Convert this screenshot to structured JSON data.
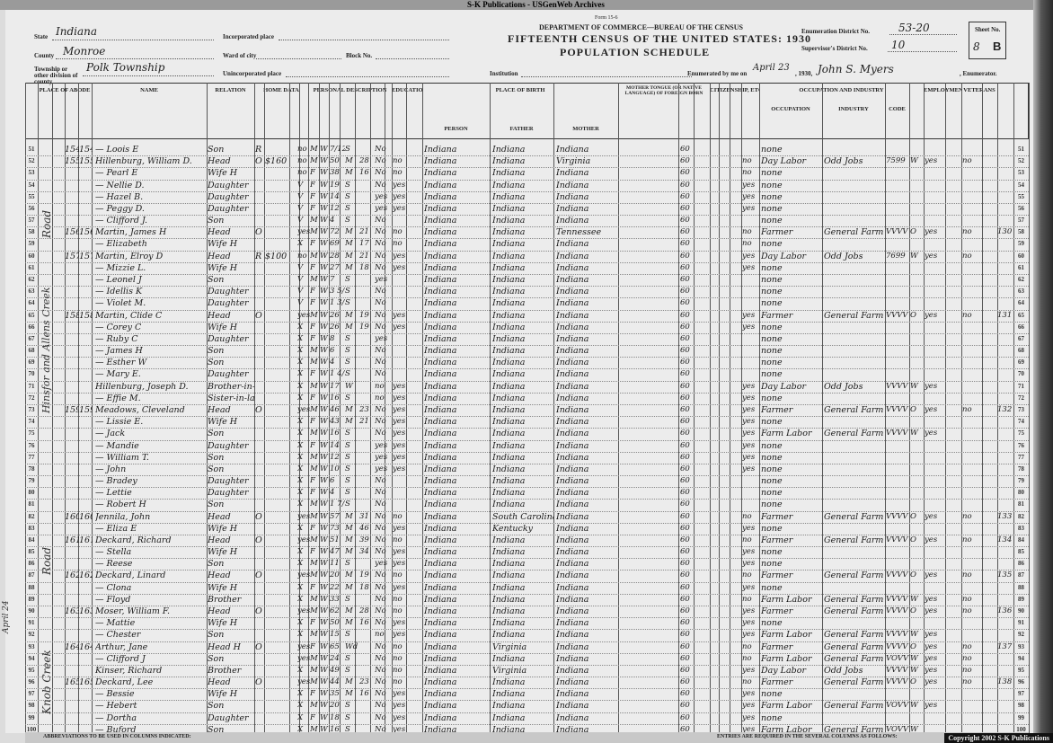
{
  "archive_banner": "S-K Publications - USGenWeb Archives",
  "form_no": "Form 15-6",
  "department": "DEPARTMENT OF COMMERCE—BUREAU OF THE CENSUS",
  "census_title": "FIFTEENTH CENSUS OF THE UNITED STATES: 1930",
  "schedule_title": "POPULATION SCHEDULE",
  "header": {
    "state_label": "State",
    "state": "Indiana",
    "county_label": "County",
    "county": "Monroe",
    "township_label": "Township or other division of county",
    "township": "Polk Township",
    "incorporated_label": "Incorporated place",
    "ward_label": "Ward of city",
    "block_label": "Block No.",
    "unincorporated_label": "Unincorporated place",
    "institution_label": "Institution",
    "ed_label": "Enumeration District No.",
    "ed": "53-20",
    "sd_label": "Supervisor's District No.",
    "sd": "10",
    "sheet_label": "Sheet No.",
    "sheet": "8",
    "sheet_side": "B",
    "enumerated_label": "Enumerated by me on",
    "enumerated_date": "April 23",
    "year": ", 1930,",
    "enumerator": "John S. Myers",
    "enumerator_label": ", Enumerator."
  },
  "column_groups": {
    "abode": "PLACE OF ABODE",
    "name": "NAME",
    "relation": "RELATION",
    "home": "HOME DATA",
    "personal": "PERSONAL DESCRIPTION",
    "education": "EDUCATION",
    "birth": "PLACE OF BIRTH",
    "tongue": "MOTHER TONGUE (OR NATIVE LANGUAGE) OF FOREIGN BORN",
    "citizenship": "CITIZENSHIP, ETC.",
    "occupation": "OCCUPATION AND INDUSTRY",
    "employment": "EMPLOYMENT",
    "veterans": "VETERANS",
    "person": "PERSON",
    "father": "FATHER",
    "mother": "MOTHER",
    "occ_sub": "OCCUPATION",
    "ind_sub": "INDUSTRY",
    "code_sub": "CODE"
  },
  "street_notes": [
    "Road",
    "Hinsfor and Allens Creek",
    "Road",
    "Knob Creek"
  ],
  "margin_note": "April 24",
  "rows": [
    [
      "51",
      "154",
      "154",
      "— Loois E",
      "Son",
      "R",
      "",
      "no",
      "M",
      "W",
      "7/12",
      "S",
      "",
      "No",
      "",
      "Indiana",
      "Indiana",
      "Indiana",
      "60",
      "",
      "none",
      "",
      "",
      "",
      "",
      "",
      ""
    ],
    [
      "52",
      "155",
      "155",
      "Hillenburg, William D.",
      "Head",
      "O",
      "$160",
      "no",
      "M",
      "W",
      "50",
      "M",
      "28",
      "No",
      "no",
      "Indiana",
      "Indiana",
      "Virginia",
      "60",
      "no",
      "Day Labor",
      "Odd Jobs",
      "7599",
      "W",
      "yes",
      "no",
      ""
    ],
    [
      "53",
      "",
      "",
      "— Pearl E",
      "Wife H",
      "",
      "",
      "no",
      "F",
      "W",
      "38",
      "M",
      "16",
      "No",
      "no",
      "Indiana",
      "Indiana",
      "Indiana",
      "60",
      "no",
      "none",
      "",
      "",
      "",
      "",
      "",
      ""
    ],
    [
      "54",
      "",
      "",
      "— Nellie D.",
      "Daughter",
      "",
      "",
      "V",
      "F",
      "W",
      "19",
      "S",
      "",
      "No",
      "yes",
      "Indiana",
      "Indiana",
      "Indiana",
      "60",
      "yes",
      "none",
      "",
      "",
      "",
      "",
      "",
      ""
    ],
    [
      "55",
      "",
      "",
      "— Hazel B.",
      "Daughter",
      "",
      "",
      "V",
      "F",
      "W",
      "14",
      "S",
      "",
      "yes",
      "yes",
      "Indiana",
      "Indiana",
      "Indiana",
      "60",
      "yes",
      "none",
      "",
      "",
      "",
      "",
      "",
      ""
    ],
    [
      "56",
      "",
      "",
      "— Peggy D.",
      "Daughter",
      "",
      "",
      "V",
      "F",
      "W",
      "12",
      "S",
      "",
      "yes",
      "yes",
      "Indiana",
      "Indiana",
      "Indiana",
      "60",
      "yes",
      "none",
      "",
      "",
      "",
      "",
      "",
      ""
    ],
    [
      "57",
      "",
      "",
      "— Clifford J.",
      "Son",
      "",
      "",
      "V",
      "M",
      "W",
      "4",
      "S",
      "",
      "No",
      "",
      "Indiana",
      "Indiana",
      "Indiana",
      "60",
      "",
      "none",
      "",
      "",
      "",
      "",
      "",
      ""
    ],
    [
      "58",
      "156",
      "156",
      "Martin, James H",
      "Head",
      "O",
      "",
      "yes",
      "M",
      "W",
      "72",
      "M",
      "21",
      "No",
      "no",
      "Indiana",
      "Indiana",
      "Tennessee",
      "60",
      "no",
      "Farmer",
      "General Farm",
      "VVVV",
      "O",
      "yes",
      "no",
      "130"
    ],
    [
      "59",
      "",
      "",
      "— Elizabeth",
      "Wife H",
      "",
      "",
      "X",
      "F",
      "W",
      "69",
      "M",
      "17",
      "No",
      "no",
      "Indiana",
      "Indiana",
      "Indiana",
      "60",
      "no",
      "none",
      "",
      "",
      "",
      "",
      "",
      ""
    ],
    [
      "60",
      "157",
      "157",
      "Martin, Elroy D",
      "Head",
      "R",
      "$100",
      "no",
      "M",
      "W",
      "28",
      "M",
      "21",
      "No",
      "yes",
      "Indiana",
      "Indiana",
      "Indiana",
      "60",
      "yes",
      "Day Labor",
      "Odd Jobs",
      "7699",
      "W",
      "yes",
      "no",
      ""
    ],
    [
      "61",
      "",
      "",
      "— Mizzie L.",
      "Wife H",
      "",
      "",
      "V",
      "F",
      "W",
      "27",
      "M",
      "18",
      "No",
      "yes",
      "Indiana",
      "Indiana",
      "Indiana",
      "60",
      "yes",
      "none",
      "",
      "",
      "",
      "",
      "",
      ""
    ],
    [
      "62",
      "",
      "",
      "— Leonel J",
      "Son",
      "",
      "",
      "V",
      "M",
      "W",
      "7",
      "S",
      "",
      "yes",
      "",
      "Indiana",
      "Indiana",
      "Indiana",
      "60",
      "",
      "none",
      "",
      "",
      "",
      "",
      "",
      ""
    ],
    [
      "63",
      "",
      "",
      "— Idellis K",
      "Daughter",
      "",
      "",
      "V",
      "F",
      "W",
      "3 5/12",
      "S",
      "",
      "No",
      "",
      "Indiana",
      "Indiana",
      "Indiana",
      "60",
      "",
      "none",
      "",
      "",
      "",
      "",
      "",
      ""
    ],
    [
      "64",
      "",
      "",
      "— Violet M.",
      "Daughter",
      "",
      "",
      "V",
      "F",
      "W",
      "1 3/12",
      "S",
      "",
      "No",
      "",
      "Indiana",
      "Indiana",
      "Indiana",
      "60",
      "",
      "none",
      "",
      "",
      "",
      "",
      "",
      ""
    ],
    [
      "65",
      "158",
      "158",
      "Martin, Clide C",
      "Head",
      "O",
      "",
      "yes",
      "M",
      "W",
      "26",
      "M",
      "19",
      "No",
      "yes",
      "Indiana",
      "Indiana",
      "Indiana",
      "60",
      "yes",
      "Farmer",
      "General Farm",
      "VVVV",
      "O",
      "yes",
      "no",
      "131"
    ],
    [
      "66",
      "",
      "",
      "— Corey C",
      "Wife H",
      "",
      "",
      "X",
      "F",
      "W",
      "26",
      "M",
      "19",
      "No",
      "yes",
      "Indiana",
      "Indiana",
      "Indiana",
      "60",
      "yes",
      "none",
      "",
      "",
      "",
      "",
      "",
      ""
    ],
    [
      "67",
      "",
      "",
      "— Ruby C",
      "Daughter",
      "",
      "",
      "X",
      "F",
      "W",
      "8",
      "S",
      "",
      "yes",
      "",
      "Indiana",
      "Indiana",
      "Indiana",
      "60",
      "",
      "none",
      "",
      "",
      "",
      "",
      "",
      ""
    ],
    [
      "68",
      "",
      "",
      "— James H",
      "Son",
      "",
      "",
      "X",
      "M",
      "W",
      "6",
      "S",
      "",
      "No",
      "",
      "Indiana",
      "Indiana",
      "Indiana",
      "60",
      "",
      "none",
      "",
      "",
      "",
      "",
      "",
      ""
    ],
    [
      "69",
      "",
      "",
      "— Esther W",
      "Son",
      "",
      "",
      "X",
      "M",
      "W",
      "4",
      "S",
      "",
      "No",
      "",
      "Indiana",
      "Indiana",
      "Indiana",
      "60",
      "",
      "none",
      "",
      "",
      "",
      "",
      "",
      ""
    ],
    [
      "70",
      "",
      "",
      "— Mary E.",
      "Daughter",
      "",
      "",
      "X",
      "F",
      "W",
      "1 4/12",
      "S",
      "",
      "No",
      "",
      "Indiana",
      "Indiana",
      "Indiana",
      "60",
      "",
      "none",
      "",
      "",
      "",
      "",
      "",
      ""
    ],
    [
      "71",
      "",
      "",
      "Hillenburg, Joseph D.",
      "Brother-in-law",
      "",
      "",
      "X",
      "M",
      "W",
      "17",
      "W",
      "",
      "no",
      "yes",
      "Indiana",
      "Indiana",
      "Indiana",
      "60",
      "yes",
      "Day Labor",
      "Odd Jobs",
      "VVVV",
      "W",
      "yes",
      "",
      ""
    ],
    [
      "72",
      "",
      "",
      "— Effie M.",
      "Sister-in-law",
      "",
      "",
      "X",
      "F",
      "W",
      "16",
      "S",
      "",
      "no",
      "yes",
      "Indiana",
      "Indiana",
      "Indiana",
      "60",
      "yes",
      "none",
      "",
      "",
      "",
      "",
      "",
      ""
    ],
    [
      "73",
      "159",
      "159",
      "Meadows, Cleveland",
      "Head",
      "O",
      "",
      "yes",
      "M",
      "W",
      "46",
      "M",
      "23",
      "No",
      "yes",
      "Indiana",
      "Indiana",
      "Indiana",
      "60",
      "yes",
      "Farmer",
      "General Farm",
      "VVVV",
      "O",
      "yes",
      "no",
      "132"
    ],
    [
      "74",
      "",
      "",
      "— Lissie E.",
      "Wife H",
      "",
      "",
      "X",
      "F",
      "W",
      "43",
      "M",
      "21",
      "No",
      "yes",
      "Indiana",
      "Indiana",
      "Indiana",
      "60",
      "yes",
      "none",
      "",
      "",
      "",
      "",
      "",
      ""
    ],
    [
      "75",
      "",
      "",
      "— Jack",
      "Son",
      "",
      "",
      "X",
      "M",
      "W",
      "16",
      "S",
      "",
      "No",
      "yes",
      "Indiana",
      "Indiana",
      "Indiana",
      "60",
      "yes",
      "Farm Labor",
      "General Farm",
      "VVVV",
      "W",
      "yes",
      "",
      ""
    ],
    [
      "76",
      "",
      "",
      "— Mandie",
      "Daughter",
      "",
      "",
      "X",
      "F",
      "W",
      "14",
      "S",
      "",
      "yes",
      "yes",
      "Indiana",
      "Indiana",
      "Indiana",
      "60",
      "yes",
      "none",
      "",
      "",
      "",
      "",
      "",
      ""
    ],
    [
      "77",
      "",
      "",
      "— William T.",
      "Son",
      "",
      "",
      "X",
      "M",
      "W",
      "12",
      "S",
      "",
      "yes",
      "yes",
      "Indiana",
      "Indiana",
      "Indiana",
      "60",
      "yes",
      "none",
      "",
      "",
      "",
      "",
      "",
      ""
    ],
    [
      "78",
      "",
      "",
      "— John",
      "Son",
      "",
      "",
      "X",
      "M",
      "W",
      "10",
      "S",
      "",
      "yes",
      "yes",
      "Indiana",
      "Indiana",
      "Indiana",
      "60",
      "yes",
      "none",
      "",
      "",
      "",
      "",
      "",
      ""
    ],
    [
      "79",
      "",
      "",
      "— Bradey",
      "Daughter",
      "",
      "",
      "X",
      "F",
      "W",
      "6",
      "S",
      "",
      "No",
      "",
      "Indiana",
      "Indiana",
      "Indiana",
      "60",
      "",
      "none",
      "",
      "",
      "",
      "",
      "",
      ""
    ],
    [
      "80",
      "",
      "",
      "— Lettie",
      "Daughter",
      "",
      "",
      "X",
      "F",
      "W",
      "4",
      "S",
      "",
      "No",
      "",
      "Indiana",
      "Indiana",
      "Indiana",
      "60",
      "",
      "none",
      "",
      "",
      "",
      "",
      "",
      ""
    ],
    [
      "81",
      "",
      "",
      "— Robert H",
      "Son",
      "",
      "",
      "X",
      "M",
      "W",
      "1 7/12",
      "S",
      "",
      "No",
      "",
      "Indiana",
      "Indiana",
      "Indiana",
      "60",
      "",
      "none",
      "",
      "",
      "",
      "",
      "",
      ""
    ],
    [
      "82",
      "160",
      "160",
      "Jennila, John",
      "Head",
      "O",
      "",
      "yes",
      "M",
      "W",
      "57",
      "M",
      "31",
      "No",
      "no",
      "Indiana",
      "South Carolina",
      "Indiana",
      "60",
      "no",
      "Farmer",
      "General Farm",
      "VVVV",
      "O",
      "yes",
      "no",
      "133"
    ],
    [
      "83",
      "",
      "",
      "— Eliza E",
      "Wife H",
      "",
      "",
      "X",
      "F",
      "W",
      "73",
      "M",
      "46",
      "No",
      "yes",
      "Indiana",
      "Kentucky",
      "Indiana",
      "60",
      "yes",
      "none",
      "",
      "",
      "",
      "",
      "",
      ""
    ],
    [
      "84",
      "161",
      "161",
      "Deckard, Richard",
      "Head",
      "O",
      "",
      "yes",
      "M",
      "W",
      "51",
      "M",
      "39",
      "No",
      "no",
      "Indiana",
      "Indiana",
      "Indiana",
      "60",
      "no",
      "Farmer",
      "General Farm",
      "VVVV",
      "O",
      "yes",
      "no",
      "134"
    ],
    [
      "85",
      "",
      "",
      "— Stella",
      "Wife H",
      "",
      "",
      "X",
      "F",
      "W",
      "47",
      "M",
      "34",
      "No",
      "yes",
      "Indiana",
      "Indiana",
      "Indiana",
      "60",
      "yes",
      "none",
      "",
      "",
      "",
      "",
      "",
      ""
    ],
    [
      "86",
      "",
      "",
      "— Reese",
      "Son",
      "",
      "",
      "X",
      "M",
      "W",
      "11",
      "S",
      "",
      "yes",
      "yes",
      "Indiana",
      "Indiana",
      "Indiana",
      "60",
      "yes",
      "none",
      "",
      "",
      "",
      "",
      "",
      ""
    ],
    [
      "87",
      "162",
      "162",
      "Deckard, Linard",
      "Head",
      "O",
      "",
      "yes",
      "M",
      "W",
      "20",
      "M",
      "19",
      "No",
      "no",
      "Indiana",
      "Indiana",
      "Indiana",
      "60",
      "no",
      "Farmer",
      "General Farm",
      "VVVV",
      "O",
      "yes",
      "no",
      "135"
    ],
    [
      "88",
      "",
      "",
      "— Clona",
      "Wife H",
      "",
      "",
      "X",
      "F",
      "W",
      "22",
      "M",
      "18",
      "No",
      "yes",
      "Indiana",
      "Indiana",
      "Indiana",
      "60",
      "yes",
      "none",
      "",
      "",
      "",
      "",
      "",
      ""
    ],
    [
      "89",
      "",
      "",
      "— Floyd",
      "Brother",
      "",
      "",
      "X",
      "M",
      "W",
      "33",
      "S",
      "",
      "No",
      "no",
      "Indiana",
      "Indiana",
      "Indiana",
      "60",
      "no",
      "Farm Labor",
      "General Farm",
      "VVVV",
      "W",
      "yes",
      "no",
      ""
    ],
    [
      "90",
      "163",
      "163",
      "Moser, William F.",
      "Head",
      "O",
      "",
      "yes",
      "M",
      "W",
      "62",
      "M",
      "28",
      "No",
      "no",
      "Indiana",
      "Indiana",
      "Indiana",
      "60",
      "yes",
      "Farmer",
      "General Farm",
      "VVVV",
      "O",
      "yes",
      "no",
      "136"
    ],
    [
      "91",
      "",
      "",
      "— Mattie",
      "Wife H",
      "",
      "",
      "X",
      "F",
      "W",
      "50",
      "M",
      "16",
      "No",
      "yes",
      "Indiana",
      "Indiana",
      "Indiana",
      "60",
      "yes",
      "none",
      "",
      "",
      "",
      "",
      "",
      ""
    ],
    [
      "92",
      "",
      "",
      "— Chester",
      "Son",
      "",
      "",
      "X",
      "M",
      "W",
      "15",
      "S",
      "",
      "no",
      "yes",
      "Indiana",
      "Indiana",
      "Indiana",
      "60",
      "yes",
      "Farm Labor",
      "General Farm",
      "VVVV",
      "W",
      "yes",
      "",
      ""
    ],
    [
      "93",
      "164",
      "164",
      "Arthur, Jane",
      "Head H",
      "O",
      "",
      "yes",
      "F",
      "W",
      "65",
      "Wd",
      "",
      "No",
      "no",
      "Indiana",
      "Virginia",
      "Indiana",
      "60",
      "no",
      "Farmer",
      "General Farm",
      "VVVV",
      "O",
      "yes",
      "no",
      "137"
    ],
    [
      "94",
      "",
      "",
      "— Clifford J",
      "Son",
      "",
      "",
      "yes",
      "M",
      "W",
      "24",
      "S",
      "",
      "No",
      "no",
      "Indiana",
      "Indiana",
      "Indiana",
      "60",
      "no",
      "Farm Labor",
      "General Farm",
      "VOVV",
      "W",
      "yes",
      "no",
      ""
    ],
    [
      "95",
      "",
      "",
      "Kinser, Richard",
      "Brother",
      "",
      "",
      "X",
      "M",
      "W",
      "49",
      "S",
      "",
      "No",
      "no",
      "Indiana",
      "Virginia",
      "Indiana",
      "60",
      "yes",
      "Day Labor",
      "Odd Jobs",
      "VVVV",
      "W",
      "yes",
      "no",
      ""
    ],
    [
      "96",
      "165",
      "165",
      "Deckard, Lee",
      "Head",
      "O",
      "",
      "yes",
      "M",
      "W",
      "44",
      "M",
      "23",
      "No",
      "no",
      "Indiana",
      "Indiana",
      "Indiana",
      "60",
      "no",
      "Farmer",
      "General Farm",
      "VVVV",
      "O",
      "yes",
      "no",
      "138"
    ],
    [
      "97",
      "",
      "",
      "— Bessie",
      "Wife H",
      "",
      "",
      "X",
      "F",
      "W",
      "35",
      "M",
      "16",
      "No",
      "yes",
      "Indiana",
      "Indiana",
      "Indiana",
      "60",
      "yes",
      "none",
      "",
      "",
      "",
      "",
      "",
      ""
    ],
    [
      "98",
      "",
      "",
      "— Hebert",
      "Son",
      "",
      "",
      "X",
      "M",
      "W",
      "20",
      "S",
      "",
      "No",
      "yes",
      "Indiana",
      "Indiana",
      "Indiana",
      "60",
      "yes",
      "Farm Labor",
      "General Farm",
      "VOVV",
      "W",
      "yes",
      "",
      ""
    ],
    [
      "99",
      "",
      "",
      "— Dortha",
      "Daughter",
      "",
      "",
      "X",
      "F",
      "W",
      "18",
      "S",
      "",
      "No",
      "yes",
      "Indiana",
      "Indiana",
      "Indiana",
      "60",
      "yes",
      "none",
      "",
      "",
      "",
      "",
      "",
      ""
    ],
    [
      "100",
      "",
      "",
      "— Buford",
      "Son",
      "",
      "",
      "X",
      "M",
      "W",
      "16",
      "S",
      "",
      "No",
      "yes",
      "Indiana",
      "Indiana",
      "Indiana",
      "60",
      "yes",
      "Farm Labor",
      "General Farm",
      "VOVV",
      "W",
      "",
      "",
      ""
    ]
  ],
  "footer": {
    "abbreviations": "ABBREVIATIONS TO BE USED IN COLUMNS INDICATED:",
    "entries": "ENTRIES ARE REQUIRED IN THE SEVERAL COLUMNS AS FOLLOWS:",
    "copyright": "Copyright 2002 S-K Publications"
  }
}
